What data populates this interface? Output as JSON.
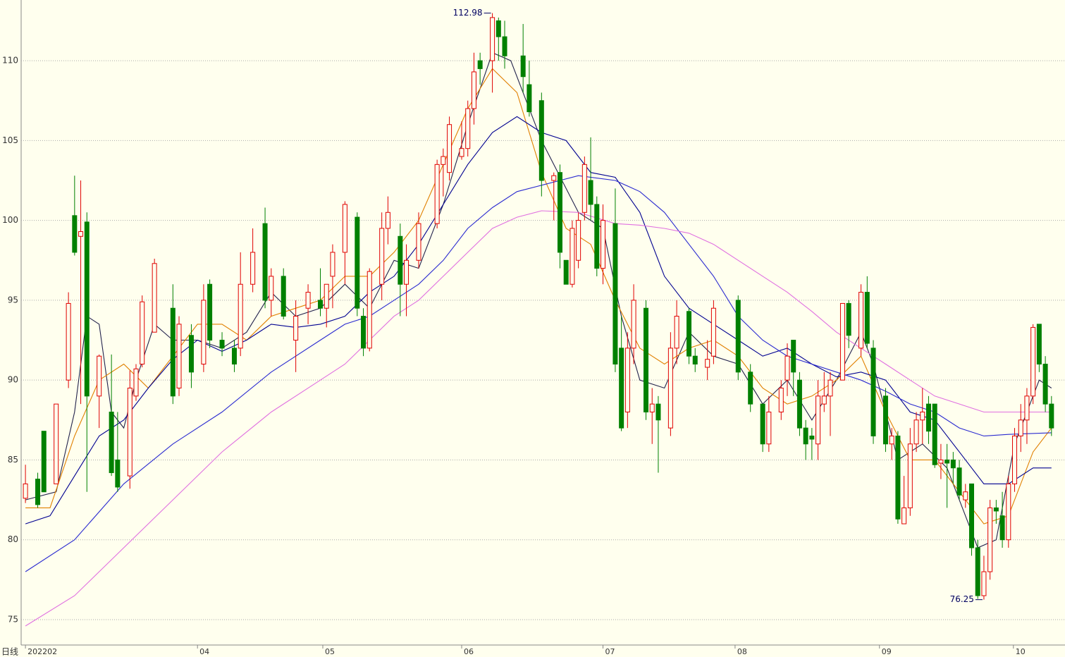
{
  "chart_data": {
    "type": "candlestick",
    "x_label": "日线",
    "xlim": [
      -0.7,
      169.2
    ],
    "xticks": [
      {
        "value": 0,
        "label": "202202"
      },
      {
        "value": 28,
        "label": "04"
      },
      {
        "value": 48.4,
        "label": "05"
      },
      {
        "value": 71,
        "label": "06"
      },
      {
        "value": 94,
        "label": "07"
      },
      {
        "value": 115.5,
        "label": "08"
      },
      {
        "value": 139,
        "label": "09"
      },
      {
        "value": 160.8,
        "label": "10"
      }
    ],
    "ylim": [
      73.41,
      113.8
    ],
    "yticks": [
      75,
      80,
      85,
      90,
      95,
      100,
      105,
      110
    ],
    "grid": true,
    "up_color": "#e00000",
    "down_color": "#008000",
    "candles": {
      "x": [
        0,
        2,
        3,
        5,
        7,
        8,
        9,
        10,
        12,
        14,
        15,
        17,
        18,
        19,
        21,
        24,
        25,
        27,
        29,
        30,
        32,
        34,
        35,
        37,
        39,
        40,
        42,
        44,
        46,
        48,
        49,
        50,
        52,
        54,
        55,
        56,
        58,
        59,
        61,
        62,
        64,
        67,
        68,
        69,
        71,
        72,
        73,
        74,
        76,
        77,
        78,
        81,
        82,
        84,
        86,
        87,
        88,
        89,
        90,
        91,
        92,
        93,
        94,
        96,
        97,
        98,
        99,
        101,
        102,
        103,
        105,
        106,
        108,
        109,
        111,
        112,
        116,
        118,
        120,
        121,
        123,
        124,
        125,
        126,
        127,
        128,
        129,
        130,
        131,
        133,
        134,
        136,
        137,
        138,
        140,
        141,
        142,
        143,
        144,
        145,
        146,
        147,
        148,
        149,
        150,
        151,
        152,
        153,
        154,
        155,
        156,
        157,
        158,
        159,
        160,
        161,
        162,
        163,
        164,
        165,
        166,
        167
      ],
      "open": [
        82.6,
        83.8,
        86.8,
        83.5,
        90,
        100.3,
        99,
        99.9,
        89,
        88,
        85,
        84,
        89,
        91,
        93,
        94.5,
        89.5,
        92.8,
        91,
        96,
        92.5,
        92,
        92,
        96,
        99.8,
        95,
        96.5,
        92.5,
        94.5,
        95,
        94.5,
        96.5,
        98,
        100.2,
        94,
        92,
        96,
        99.5,
        99,
        96,
        97.5,
        99.8,
        103.5,
        103,
        104,
        104.5,
        107,
        110,
        110,
        112.5,
        111.5,
        110.3,
        108.5,
        107.5,
        102.5,
        103,
        97.5,
        96,
        97.5,
        100.5,
        102.5,
        101,
        97,
        99.8,
        92,
        88,
        92,
        94.5,
        88,
        88.5,
        87,
        92,
        94.3,
        91.5,
        90.8,
        91.5,
        95,
        90.5,
        88.5,
        86,
        88,
        90,
        92.5,
        90,
        87,
        86.5,
        86,
        88.5,
        89,
        90,
        94.8,
        92,
        95.5,
        92,
        89,
        86,
        86.5,
        81,
        82,
        86,
        87.5,
        88.5,
        88.5,
        84.8,
        85,
        85,
        84.5,
        82.5,
        83.5,
        79.5,
        76.5,
        78,
        82,
        81.5,
        80,
        83.5,
        86.5,
        87.5,
        89,
        93.5,
        91,
        88.5
      ],
      "high": [
        84.7,
        84.2,
        86.8,
        88.5,
        95.5,
        102.8,
        102.5,
        100.5,
        91.6,
        91.6,
        88,
        90.6,
        91,
        95.3,
        97.6,
        96,
        94,
        93.5,
        96,
        96.3,
        93,
        92.5,
        98,
        99.5,
        100.8,
        97,
        97,
        95,
        96,
        97,
        96,
        98.5,
        101.2,
        100.5,
        94.5,
        97,
        100.5,
        101.5,
        99.8,
        98.5,
        100.5,
        103.8,
        104.5,
        106.5,
        106.2,
        107.5,
        110.5,
        110.5,
        112.98,
        112.7,
        112.5,
        112.3,
        110,
        108,
        103,
        103.5,
        97.5,
        100,
        100.5,
        104,
        105.2,
        101.5,
        101,
        102,
        94,
        93,
        96,
        95,
        89.5,
        89,
        93,
        95,
        94.5,
        92,
        92.5,
        95,
        95.3,
        91,
        88.5,
        89,
        90,
        92.3,
        92.5,
        90.5,
        87.5,
        87,
        90,
        90.5,
        90.5,
        94.8,
        95,
        96,
        96.5,
        92.5,
        89.5,
        87,
        86.8,
        84,
        87,
        88,
        89.5,
        89,
        88.5,
        86,
        86,
        85.5,
        85,
        83.5,
        83.5,
        80,
        79,
        82.5,
        82.5,
        83,
        84,
        87,
        88.5,
        89.5,
        93.5,
        93.5,
        91.5,
        89
      ],
      "low": [
        82.3,
        82,
        83,
        83.5,
        89.5,
        97.8,
        88.5,
        83,
        87,
        84,
        83,
        83.2,
        88.7,
        90.8,
        93,
        88.5,
        89,
        89.5,
        90.5,
        92,
        91.5,
        90.5,
        91.5,
        95.5,
        94.5,
        94,
        93.8,
        90.5,
        93.5,
        94,
        93.3,
        94.5,
        96,
        94,
        91.5,
        91.8,
        95,
        98.5,
        94,
        94,
        97,
        99.5,
        101.5,
        102.5,
        103.8,
        104,
        106,
        108.5,
        108,
        110,
        109.5,
        108,
        106.5,
        101.5,
        100,
        97,
        96,
        95.8,
        97,
        100,
        100,
        96.5,
        96,
        90.5,
        86.8,
        87,
        91,
        87.5,
        86,
        84.2,
        86.5,
        91,
        91,
        90.5,
        90,
        91,
        90,
        88,
        85.5,
        85.5,
        87.5,
        89,
        89,
        86.5,
        85,
        85,
        85,
        88,
        86.5,
        90,
        92,
        91.5,
        92,
        86,
        85.5,
        85,
        81,
        81,
        81.5,
        85.5,
        86,
        86,
        84.5,
        83.8,
        82,
        83.5,
        82.5,
        82,
        79,
        76.3,
        76.25,
        77.5,
        81,
        79.5,
        79.5,
        83,
        85.5,
        86,
        88.5,
        90.5,
        88,
        86.5
      ],
      "close": [
        83.5,
        82.2,
        83,
        88.5,
        94.8,
        98,
        99.3,
        89,
        91.5,
        84.2,
        83.3,
        89.5,
        90.7,
        94.9,
        97.3,
        89,
        93.5,
        90.5,
        95,
        92.5,
        92,
        91,
        96,
        98,
        95,
        96.5,
        94,
        94,
        95.5,
        94.5,
        96,
        98,
        101,
        94.5,
        92,
        96.8,
        99.5,
        100.5,
        96,
        97.5,
        99.8,
        103.5,
        104,
        106,
        104.5,
        107,
        109.3,
        109.5,
        112.7,
        111.5,
        110.3,
        109,
        106.8,
        102.5,
        102.8,
        98,
        96,
        99.5,
        100,
        103.5,
        101,
        97,
        100,
        91,
        87,
        92,
        95,
        88,
        88.5,
        87.5,
        92,
        94,
        91.5,
        91,
        91.3,
        94.5,
        90.5,
        88.5,
        86,
        88,
        89.5,
        91.5,
        90.5,
        87,
        86,
        86.3,
        89,
        89,
        90,
        94.8,
        92.8,
        95.5,
        92.3,
        86.5,
        86,
        86.5,
        81.3,
        82,
        86,
        87.5,
        88,
        86.8,
        84.7,
        85,
        84.8,
        84.5,
        82.8,
        83,
        79.5,
        76.5,
        78,
        82,
        81.8,
        80,
        83.5,
        86.5,
        87.5,
        89,
        93.3,
        91,
        88.5,
        87
      ]
    },
    "series": [
      {
        "color": "#23234d",
        "x": [
          0,
          5,
          8,
          10,
          12,
          14,
          16,
          18,
          21,
          24,
          28,
          32,
          36,
          40,
          44,
          48,
          52,
          56,
          60,
          64,
          68,
          72,
          76,
          79,
          84,
          90,
          94,
          97,
          100,
          104,
          108,
          112,
          116,
          120,
          124,
          128,
          132,
          136,
          138,
          142,
          146,
          150,
          155,
          158,
          161,
          165,
          167
        ],
        "values": [
          82.5,
          83,
          88,
          94,
          93.5,
          88,
          87,
          90,
          93.5,
          92.5,
          92.5,
          92,
          93,
          95.5,
          94,
          94.5,
          96,
          94.5,
          97.5,
          97,
          101,
          106,
          110.5,
          110,
          105,
          100.5,
          99.5,
          94,
          90,
          89.5,
          93,
          91.5,
          91,
          88.5,
          90,
          87.5,
          90,
          93,
          91,
          85,
          86,
          84.5,
          79.5,
          80,
          86,
          90,
          89.5
        ]
      },
      {
        "color": "#e08000",
        "x": [
          0,
          4,
          8,
          12,
          16,
          20,
          24,
          28,
          32,
          36,
          40,
          44,
          48,
          52,
          56,
          60,
          64,
          68,
          72,
          76,
          80,
          84,
          88,
          92,
          96,
          100,
          104,
          108,
          112,
          116,
          120,
          124,
          128,
          132,
          136,
          140,
          144,
          148,
          152,
          156,
          160,
          164,
          167
        ],
        "values": [
          82,
          82,
          86.5,
          90,
          91,
          89.5,
          91.5,
          93.5,
          93.5,
          92.5,
          94,
          94.5,
          95,
          96.5,
          96.5,
          98,
          100,
          103.5,
          107,
          109.5,
          108,
          103,
          99.5,
          98.5,
          95,
          92,
          91,
          92,
          92.5,
          91.5,
          89.5,
          88.5,
          89,
          90,
          91.5,
          88,
          85,
          85,
          83,
          81,
          81.5,
          85.5,
          87
        ]
      },
      {
        "color": "#000090",
        "x": [
          0,
          4,
          8,
          12,
          16,
          20,
          24,
          28,
          32,
          36,
          40,
          44,
          48,
          52,
          56,
          60,
          64,
          68,
          72,
          76,
          80,
          84,
          88,
          92,
          96,
          100,
          104,
          108,
          112,
          116,
          120,
          124,
          128,
          132,
          136,
          140,
          144,
          148,
          152,
          156,
          160,
          164,
          167
        ],
        "values": [
          81,
          81.5,
          84,
          86.5,
          87.5,
          89.5,
          91.3,
          92.5,
          91.8,
          92.5,
          93.5,
          93.3,
          93.5,
          94,
          95.5,
          96.5,
          98.5,
          101,
          103.5,
          105.5,
          106.5,
          105.5,
          105,
          103,
          102.7,
          100.5,
          96.5,
          94.5,
          93.5,
          92.5,
          91.5,
          92,
          91,
          90.2,
          90.5,
          90,
          88,
          87.5,
          85.5,
          83.5,
          83.5,
          84.5,
          84.5
        ]
      },
      {
        "color": "#2a2ad0",
        "x": [
          0,
          8,
          16,
          24,
          32,
          40,
          48,
          52,
          56,
          60,
          64,
          68,
          72,
          76,
          80,
          84,
          90,
          96,
          100,
          104,
          108,
          112,
          116,
          120,
          124,
          128,
          132,
          136,
          140,
          144,
          148,
          152,
          156,
          160,
          167
        ],
        "values": [
          78,
          80,
          83.5,
          86,
          88,
          90.5,
          92.5,
          93.5,
          94,
          95,
          96,
          97.5,
          99.5,
          100.8,
          101.8,
          102.2,
          102.8,
          102.5,
          101.8,
          100.5,
          98.5,
          96.5,
          94,
          92.5,
          91.5,
          91,
          90.5,
          90,
          89.3,
          88.5,
          88,
          87,
          86.5,
          86.6,
          86.7
        ]
      },
      {
        "color": "#e070e0",
        "x": [
          0,
          8,
          16,
          24,
          32,
          40,
          48,
          52,
          56,
          60,
          64,
          68,
          72,
          76,
          80,
          84,
          90,
          96,
          100,
          104,
          108,
          112,
          116,
          120,
          124,
          128,
          132,
          136,
          140,
          144,
          148,
          152,
          156,
          160,
          167
        ],
        "values": [
          74.6,
          76.5,
          79.5,
          82.5,
          85.5,
          88,
          90,
          91,
          92.5,
          94,
          95,
          96.5,
          98,
          99.5,
          100.2,
          100.6,
          100.5,
          99.8,
          99.7,
          99.5,
          99.2,
          98.5,
          97.5,
          96.5,
          95.5,
          94.3,
          93,
          92,
          91,
          90,
          89,
          88.5,
          88,
          88,
          88
        ]
      }
    ],
    "annotations": [
      {
        "x": 76,
        "value": 112.98
      },
      {
        "x": 156,
        "value": 76.25
      }
    ]
  }
}
